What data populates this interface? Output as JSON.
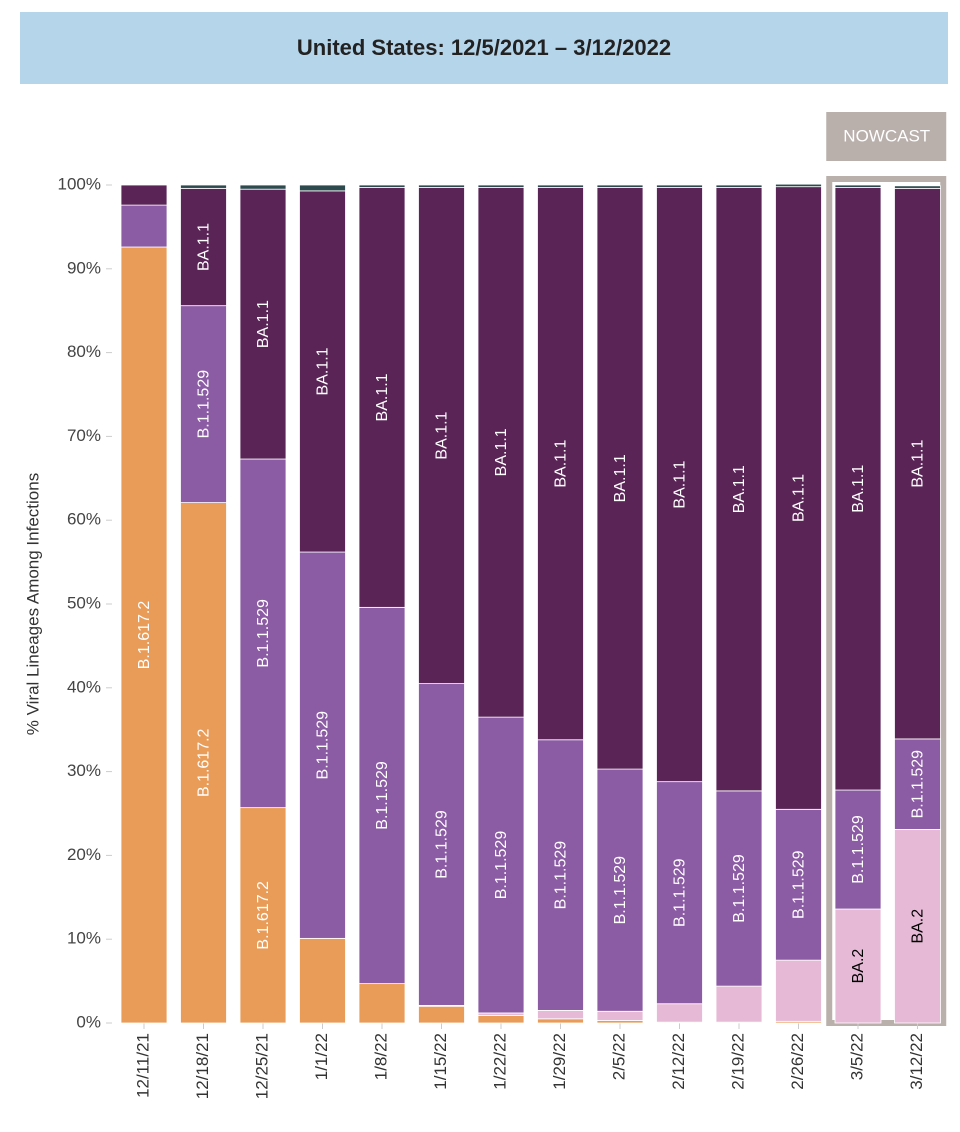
{
  "chart_data": {
    "type": "stacked-bar",
    "title": "United States: 12/5/2021 – 3/12/2022",
    "y_label": "% Viral Lineages Among Infections",
    "categories": [
      "12/11/21",
      "12/18/21",
      "12/25/21",
      "1/1/22",
      "1/8/22",
      "1/15/22",
      "1/22/22",
      "1/29/22",
      "2/5/22",
      "2/12/22",
      "2/19/22",
      "2/26/22",
      "3/5/22",
      "3/12/22"
    ],
    "series": [
      {
        "name": "B.1.617.2",
        "color": "#e89c58",
        "label_color": "#ffffff",
        "values": [
          92.6,
          62.1,
          25.7,
          10.1,
          4.7,
          2.0,
          0.9,
          0.5,
          0.3,
          0.1,
          0.1,
          0.2,
          0,
          0
        ]
      },
      {
        "name": "BA.2",
        "color": "#e6bad6",
        "label_color": "#000000",
        "values": [
          0,
          0,
          0,
          0,
          0,
          0.1,
          0.3,
          1.0,
          1.1,
          2.2,
          4.3,
          7.3,
          13.6,
          23.1
        ]
      },
      {
        "name": "B.1.1.529",
        "color": "#8b5ba3",
        "label_color": "#ffffff",
        "values": [
          5.0,
          23.5,
          41.6,
          46.1,
          44.9,
          38.4,
          35.3,
          32.3,
          28.9,
          26.5,
          23.3,
          18.0,
          14.2,
          10.8
        ]
      },
      {
        "name": "BA.1.1",
        "color": "#5a2457",
        "label_color": "#ffffff",
        "values": [
          2.4,
          14.0,
          32.2,
          43.1,
          50.1,
          59.2,
          63.2,
          65.9,
          69.4,
          70.9,
          72.0,
          74.3,
          71.9,
          65.7
        ]
      },
      {
        "color": "#2d4a4f",
        "values": [
          0,
          0.4,
          0.5,
          0.7,
          0.3,
          0.3,
          0.3,
          0.3,
          0.3,
          0.3,
          0.3,
          0.3,
          0.3,
          0.3
        ]
      }
    ],
    "ylim": [
      0,
      100
    ],
    "yticks": [
      {
        "value": 0,
        "label": "0%"
      },
      {
        "value": 10,
        "label": "10%"
      },
      {
        "value": 20,
        "label": "20%"
      },
      {
        "value": 30,
        "label": "30%"
      },
      {
        "value": 40,
        "label": "40%"
      },
      {
        "value": 50,
        "label": "50%"
      },
      {
        "value": 60,
        "label": "60%"
      },
      {
        "value": 70,
        "label": "70%"
      },
      {
        "value": 80,
        "label": "80%"
      },
      {
        "value": 90,
        "label": "90%"
      },
      {
        "value": 100,
        "label": "100%"
      }
    ],
    "grid": false,
    "nowcast": {
      "label": "NOWCAST",
      "from_index": 12
    }
  }
}
